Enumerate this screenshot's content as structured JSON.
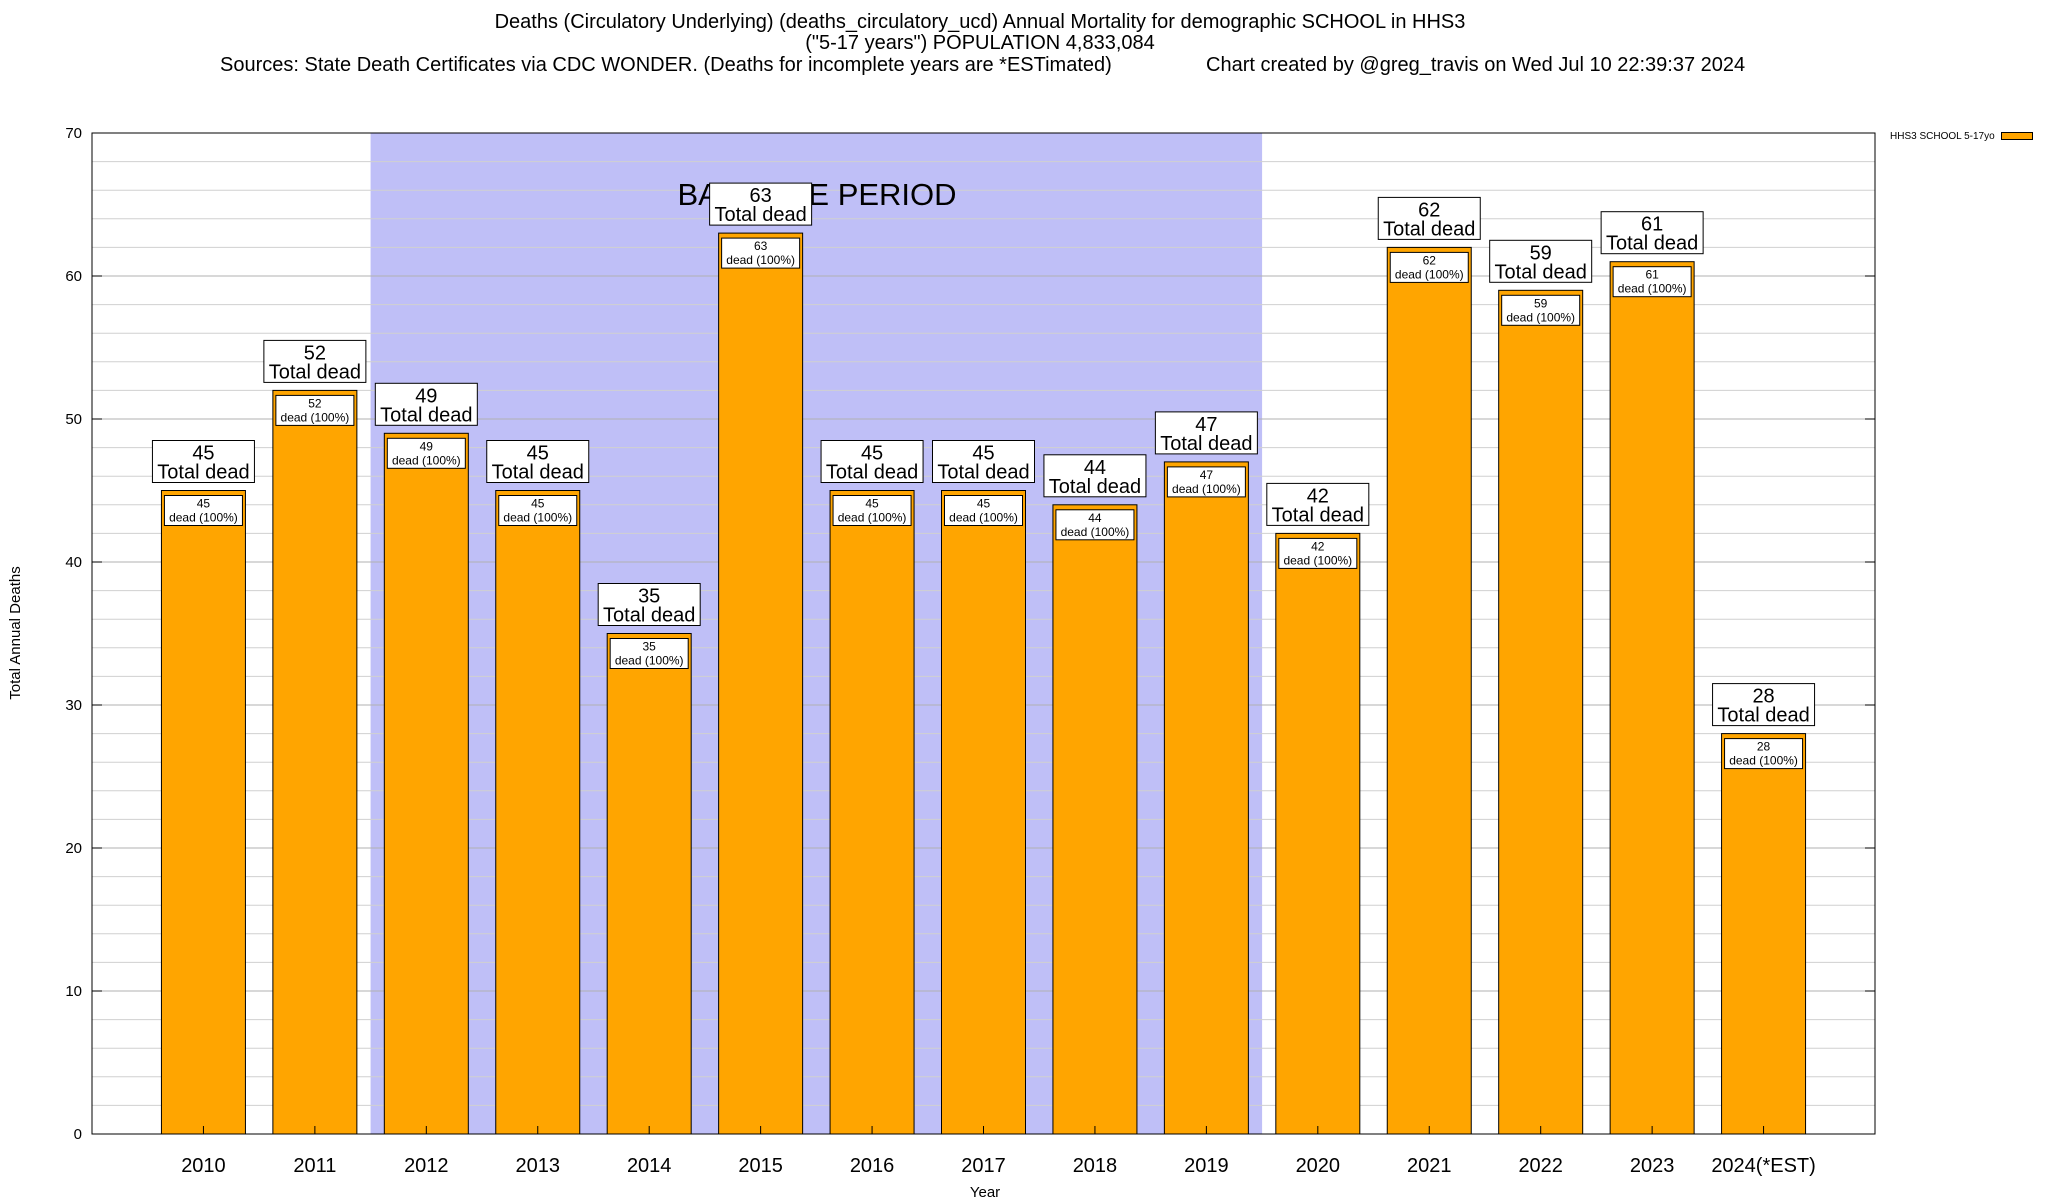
{
  "header": {
    "title_line1": "Deaths (Circulatory Underlying) (deaths_circulatory_ucd) Annual Mortality for demographic SCHOOL in HHS3",
    "title_line2": "(\"5-17 years\") POPULATION 4,833,084",
    "sources": "Sources: State Death Certificates via CDC WONDER. (Deaths for incomplete years are *ESTimated)",
    "credit": "Chart created by @greg_travis on Wed Jul 10 22:39:37 2024"
  },
  "chart_data": {
    "type": "bar",
    "title": "Deaths (Circulatory Underlying) (deaths_circulatory_ucd) Annual Mortality for demographic SCHOOL in HHS3",
    "xlabel": "Year",
    "ylabel": "Total Annual Deaths",
    "ylim": [
      0,
      70
    ],
    "yticks": [
      0,
      10,
      20,
      30,
      40,
      50,
      60,
      70
    ],
    "grid": true,
    "legend_position": "top-right",
    "categories": [
      "2010",
      "2011",
      "2012",
      "2013",
      "2014",
      "2015",
      "2016",
      "2017",
      "2018",
      "2019",
      "2020",
      "2021",
      "2022",
      "2023",
      "2024(*EST)"
    ],
    "series": [
      {
        "name": "HHS3 SCHOOL 5-17yo",
        "color": "#ffa500",
        "values": [
          45,
          52,
          49,
          45,
          35,
          63,
          45,
          45,
          44,
          47,
          42,
          62,
          59,
          61,
          28
        ]
      }
    ],
    "total_label": "Total dead",
    "inner_label_suffix": "dead (100%)",
    "baseline": {
      "label": "BASELINE PERIOD",
      "start": "2012",
      "end": "2019",
      "color": "#bfbff7"
    }
  }
}
